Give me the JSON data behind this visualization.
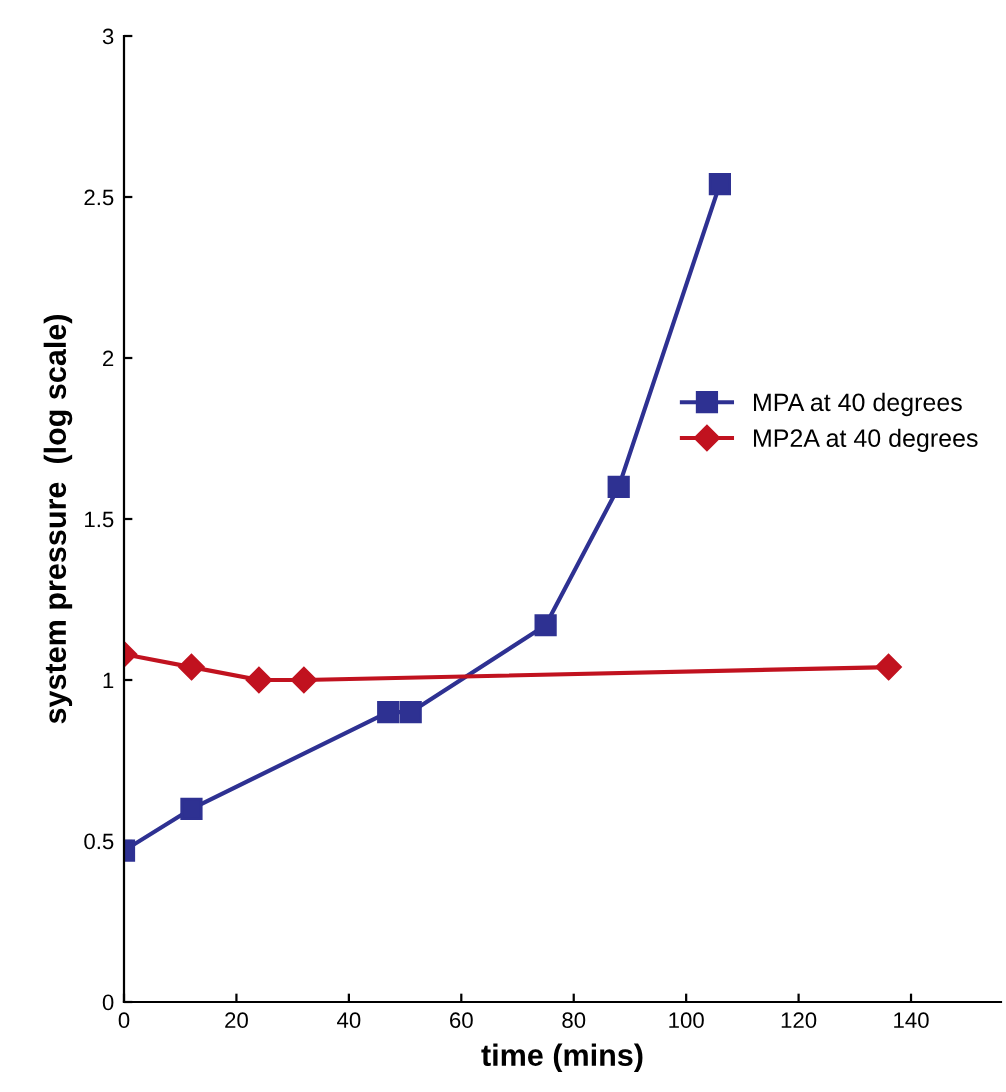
{
  "chart_data": {
    "type": "line",
    "xlabel": "time (mins)",
    "ylabel": "system pressure  (log scale)",
    "xlim": [
      0,
      156
    ],
    "ylim": [
      0,
      3
    ],
    "xticks": [
      0,
      20,
      40,
      60,
      80,
      100,
      120,
      140
    ],
    "yticks": [
      0,
      0.5,
      1,
      1.5,
      2,
      2.5,
      3
    ],
    "grid": false,
    "legend": "right",
    "line_style": "solid",
    "series": [
      {
        "name": "MPA at 40 degrees",
        "color": "#2e3192",
        "marker": "square",
        "x": [
          0,
          12,
          47,
          51,
          75,
          88,
          106
        ],
        "values": [
          0.47,
          0.6,
          0.9,
          0.9,
          1.17,
          1.6,
          2.54
        ]
      },
      {
        "name": "MP2A at 40 degrees",
        "color": "#c1121f",
        "marker": "diamond",
        "x": [
          0,
          12,
          24,
          32,
          136
        ],
        "values": [
          1.08,
          1.04,
          1.0,
          1.0,
          1.04
        ]
      }
    ]
  }
}
